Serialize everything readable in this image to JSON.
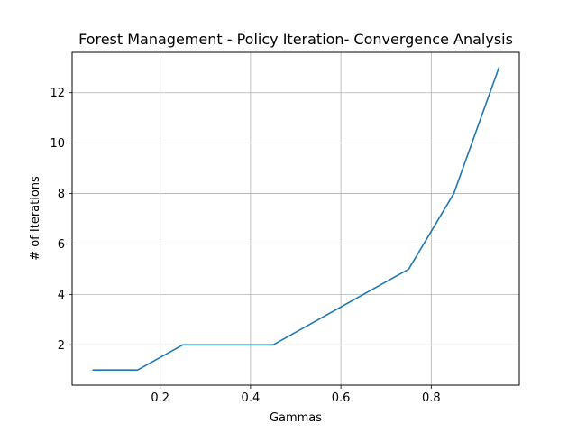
{
  "chart_data": {
    "type": "line",
    "title": "Forest Management - Policy Iteration- Convergence Analysis",
    "xlabel": "Gammas",
    "ylabel": "# of Iterations",
    "xlim": [
      0.005,
      0.995
    ],
    "ylim": [
      0.4,
      13.6
    ],
    "xticks": [
      0.2,
      0.4,
      0.6,
      0.8
    ],
    "xtick_labels": [
      "0.2",
      "0.4",
      "0.6",
      "0.8"
    ],
    "yticks": [
      2,
      4,
      6,
      8,
      10,
      12
    ],
    "ytick_labels": [
      "2",
      "4",
      "6",
      "8",
      "10",
      "12"
    ],
    "grid": true,
    "line_color": "#1f77b4",
    "series": [
      {
        "x": [
          0.05,
          0.15,
          0.25,
          0.35,
          0.45,
          0.55,
          0.65,
          0.75,
          0.85,
          0.95
        ],
        "values": [
          1,
          1,
          2,
          2,
          2,
          3,
          4,
          5,
          8,
          13
        ]
      }
    ]
  }
}
